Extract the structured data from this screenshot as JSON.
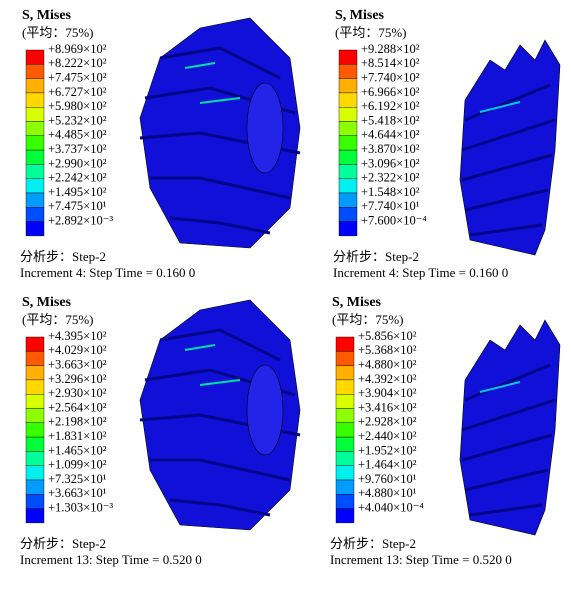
{
  "panels": [
    {
      "title": "S, Mises",
      "subtitle": "(平均：75%)",
      "legend": [
        "+8.969×10²",
        "+8.222×10²",
        "+7.475×10²",
        "+6.727×10²",
        "+5.980×10²",
        "+5.232×10²",
        "+4.485×10²",
        "+3.737×10²",
        "+2.990×10²",
        "+2.242×10²",
        "+1.495×10²",
        "+7.475×10¹",
        "+2.892×10⁻³"
      ],
      "step": "分析步：Step-2",
      "increment": "Increment 4: Step Time = 0.160 0"
    },
    {
      "title": "S, Mises",
      "subtitle": "(平均：75%)",
      "legend": [
        "+9.288×10²",
        "+8.514×10²",
        "+7.740×10²",
        "+6.966×10²",
        "+6.192×10²",
        "+5.418×10²",
        "+4.644×10²",
        "+3.870×10²",
        "+3.096×10²",
        "+2.322×10²",
        "+1.548×10²",
        "+7.740×10¹",
        "+7.600×10⁻⁴"
      ],
      "step": "分析步：Step-2",
      "increment": "Increment 4: Step Time = 0.160 0"
    },
    {
      "title": "S, Mises",
      "subtitle": "(平均：75%)",
      "legend": [
        "+4.395×10²",
        "+4.029×10²",
        "+3.663×10²",
        "+3.296×10²",
        "+2.930×10²",
        "+2.564×10²",
        "+2.198×10²",
        "+1.831×10²",
        "+1.465×10²",
        "+1.099×10²",
        "+7.325×10¹",
        "+3.663×10¹",
        "+1.303×10⁻³"
      ],
      "step": "分析步：Step-2",
      "increment": "Increment 13: Step Time = 0.520 0"
    },
    {
      "title": "S, Mises",
      "subtitle": "(平均：75%)",
      "legend": [
        "+5.856×10²",
        "+5.368×10²",
        "+4.880×10²",
        "+4.392×10²",
        "+3.904×10²",
        "+3.416×10²",
        "+2.928×10²",
        "+2.440×10²",
        "+1.952×10²",
        "+1.464×10²",
        "+9.760×10¹",
        "+4.880×10¹",
        "+4.040×10⁻⁴"
      ],
      "step": "分析步：Step-2",
      "increment": "Increment 13: Step Time = 0.520 0"
    }
  ]
}
